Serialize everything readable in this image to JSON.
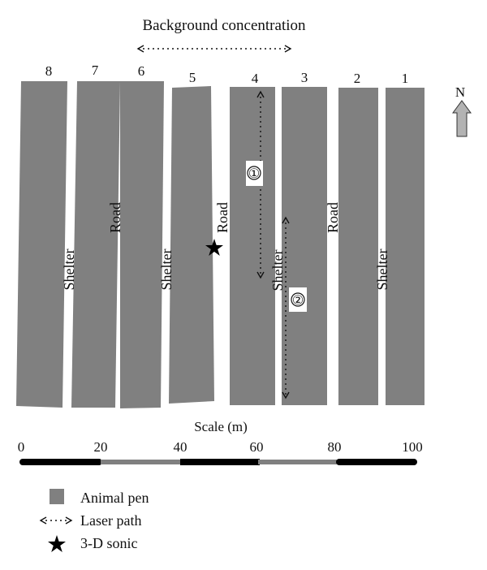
{
  "background_label": "Background concentration",
  "pens": [
    {
      "number": "8"
    },
    {
      "number": "7"
    },
    {
      "number": "6"
    },
    {
      "number": "5"
    },
    {
      "number": "4"
    },
    {
      "number": "3"
    },
    {
      "number": "2"
    },
    {
      "number": "1"
    }
  ],
  "labels": {
    "shelter": "Shelter",
    "road": "Road"
  },
  "laser_paths": [
    {
      "marker": "①"
    },
    {
      "marker": "②"
    }
  ],
  "north": {
    "label": "N"
  },
  "scale": {
    "title": "Scale  (m)",
    "ticks": [
      "0",
      "20",
      "40",
      "60",
      "80",
      "100"
    ]
  },
  "legend": {
    "pen": "Animal pen",
    "laser": "Laser path",
    "sonic": "3-D sonic"
  },
  "colors": {
    "pen": "#808080",
    "bar_dark": "#000000",
    "bar_light": "#808080",
    "arrow": "#b3b3b3"
  }
}
